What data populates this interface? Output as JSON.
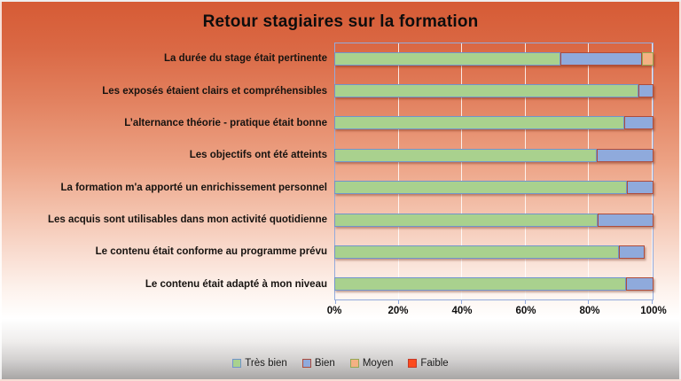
{
  "title": "Retour stagiaires sur la formation",
  "chart_data": {
    "type": "bar",
    "variant": "stacked-horizontal-percent",
    "title": "Retour stagiaires sur la formation",
    "categories": [
      "La durée du stage était pertinente",
      "Les exposés étaient clairs et compréhensibles",
      "L’alternance théorie - pratique était bonne",
      "Les objectifs ont été atteints",
      "La formation m'a apporté un enrichissement personnel",
      "Les acquis sont utilisables dans mon activité quotidienne",
      "Le contenu était conforme au programme prévu",
      "Le contenu était adapté à mon niveau"
    ],
    "series": [
      {
        "name": "Très bien",
        "color": "#a9d18e",
        "border_color": "#7094cc",
        "values": [
          70.7,
          95.3,
          90.8,
          82.1,
          91.6,
          82.4,
          89.1,
          91.3
        ]
      },
      {
        "name": "Bien",
        "color": "#8faadc",
        "border_color": "#ae4c3c",
        "values": [
          25.7,
          4.7,
          9.2,
          17.9,
          8.4,
          17.6,
          8.1,
          8.7
        ]
      },
      {
        "name": "Moyen",
        "color": "#f4b183",
        "border_color": "#94a854",
        "values": [
          3.6,
          0,
          0,
          0,
          0,
          0,
          0,
          0
        ]
      },
      {
        "name": "Faible",
        "color": "#fc4b1e",
        "border_color": "#c43a28",
        "values": [
          0,
          0,
          0,
          0,
          0,
          0,
          0,
          0
        ]
      }
    ],
    "x_ticks": [
      "0%",
      "20%",
      "40%",
      "60%",
      "80%",
      "100%"
    ],
    "xlim": [
      0,
      100
    ],
    "grid": "vertical-major-20pct",
    "legend_position": "bottom"
  }
}
